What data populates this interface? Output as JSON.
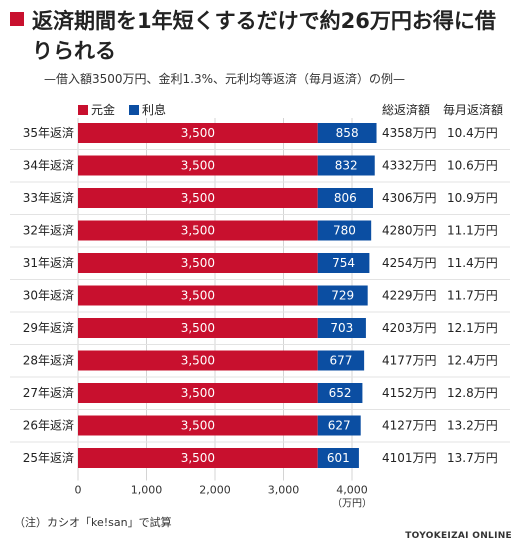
{
  "title": "返済期間を1年短くするだけで約26万円お得に借りられる",
  "subtitle": "—借入額3500万円、金利1.3%、元利均等返済（毎月返済）の例—",
  "legend": [
    {
      "label": "元金",
      "color": "#c8102e"
    },
    {
      "label": "利息",
      "color": "#0b4ea2"
    }
  ],
  "table_headers": {
    "total": "総返済額",
    "monthly": "毎月返済額"
  },
  "footnote": "（注）カシオ「ke!san」で試算",
  "credit": "TOYOKEIZAI ONLINE",
  "chart_data": {
    "type": "bar",
    "orientation": "horizontal",
    "stacked": true,
    "title": "返済期間を1年短くするだけで約26万円お得に借りられる",
    "subtitle": "—借入額3500万円、金利1.3%、元利均等返済（毎月返済）の例—",
    "categories": [
      "35年返済",
      "34年返済",
      "33年返済",
      "32年返済",
      "31年返済",
      "30年返済",
      "29年返済",
      "28年返済",
      "27年返済",
      "26年返済",
      "25年返済"
    ],
    "series": [
      {
        "name": "元金",
        "color": "#c8102e",
        "values": [
          3500,
          3500,
          3500,
          3500,
          3500,
          3500,
          3500,
          3500,
          3500,
          3500,
          3500
        ],
        "labels": [
          "3,500",
          "3,500",
          "3,500",
          "3,500",
          "3,500",
          "3,500",
          "3,500",
          "3,500",
          "3,500",
          "3,500",
          "3,500"
        ]
      },
      {
        "name": "利息",
        "color": "#0b4ea2",
        "values": [
          858,
          832,
          806,
          780,
          754,
          729,
          703,
          677,
          652,
          627,
          601
        ],
        "labels": [
          "858",
          "832",
          "806",
          "780",
          "754",
          "729",
          "703",
          "677",
          "652",
          "627",
          "601"
        ]
      }
    ],
    "total_repayment": [
      "4358万円",
      "4332万円",
      "4306万円",
      "4280万円",
      "4254万円",
      "4229万円",
      "4203万円",
      "4177万円",
      "4152万円",
      "4127万円",
      "4101万円"
    ],
    "monthly_repayment": [
      "10.4万円",
      "10.6万円",
      "10.9万円",
      "11.1万円",
      "11.4万円",
      "11.7万円",
      "12.1万円",
      "12.4万円",
      "12.8万円",
      "13.2万円",
      "13.7万円"
    ],
    "x_ticks": [
      "0",
      "1,000",
      "2,000",
      "3,000",
      "4,000"
    ],
    "x_tick_values": [
      0,
      1000,
      2000,
      3000,
      4000
    ],
    "xlim": [
      0,
      4500
    ],
    "x_unit": "（万円）",
    "grid": true,
    "legend_position": "top-left"
  }
}
